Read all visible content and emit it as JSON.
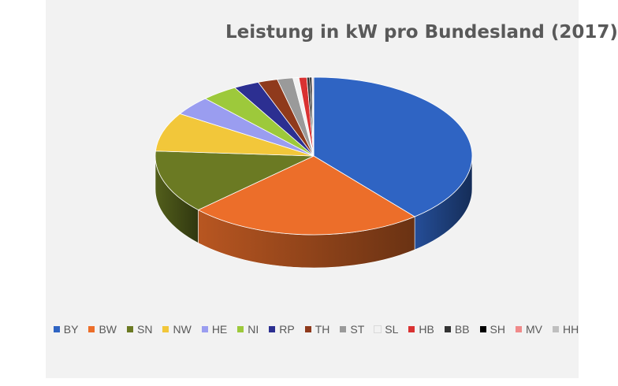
{
  "chart_data": {
    "type": "pie",
    "title": "Leistung in kW pro Bundesland (2017)",
    "legend_position": "bottom",
    "categories": [
      "BY",
      "BW",
      "SN",
      "NW",
      "HE",
      "NI",
      "RP",
      "TH",
      "ST",
      "SL",
      "HB",
      "BB",
      "SH",
      "MV",
      "HH"
    ],
    "values": [
      39.0,
      24.0,
      13.0,
      8.0,
      4.0,
      3.7,
      2.6,
      2.0,
      1.6,
      0.6,
      0.8,
      0.3,
      0.2,
      0.1,
      0.1
    ],
    "colors": [
      "#2f64c3",
      "#ec6e2a",
      "#6b7a23",
      "#f2c73a",
      "#9a9df0",
      "#9dc93b",
      "#2c2f91",
      "#8f3a1c",
      "#9a9a9a",
      "#f2f2f2",
      "#d93232",
      "#333333",
      "#000000",
      "#f08a8a",
      "#bfbfbf"
    ]
  }
}
